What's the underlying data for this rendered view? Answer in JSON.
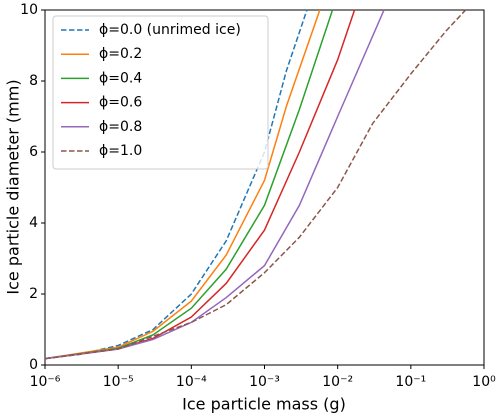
{
  "chart_data": {
    "type": "line",
    "xlabel": "Ice particle mass (g)",
    "ylabel": "Ice particle diameter (mm)",
    "xscale": "log",
    "xlim": [
      1e-06,
      1
    ],
    "ylim": [
      0,
      10
    ],
    "xticks": [
      {
        "value": 1e-06,
        "label": "10⁻⁶"
      },
      {
        "value": 1e-05,
        "label": "10⁻⁵"
      },
      {
        "value": 0.0001,
        "label": "10⁻⁴"
      },
      {
        "value": 0.001,
        "label": "10⁻³"
      },
      {
        "value": 0.01,
        "label": "10⁻²"
      },
      {
        "value": 0.1,
        "label": "10⁻¹"
      },
      {
        "value": 1,
        "label": "10⁰"
      }
    ],
    "yticks": [
      0,
      2,
      4,
      6,
      8,
      10
    ],
    "legend": "upper left",
    "series": [
      {
        "name": "ϕ=0.0 (unrimed ice)",
        "color": "#1f77b4",
        "linestyle": "dashed",
        "x": [
          1e-06,
          3e-06,
          1e-05,
          3e-05,
          0.0001,
          0.0003,
          0.001,
          0.002,
          0.0038
        ],
        "values": [
          0.18,
          0.3,
          0.55,
          1.0,
          2.0,
          3.5,
          6.0,
          8.3,
          10
        ]
      },
      {
        "name": "ϕ=0.2",
        "color": "#ff7f0e",
        "linestyle": "solid",
        "x": [
          1e-06,
          1e-05,
          3e-05,
          0.0001,
          0.0003,
          0.001,
          0.002,
          0.0057
        ],
        "values": [
          0.18,
          0.5,
          0.95,
          1.8,
          3.1,
          5.2,
          7.3,
          10
        ]
      },
      {
        "name": "ϕ=0.4",
        "color": "#2ca02c",
        "linestyle": "solid",
        "x": [
          1e-06,
          1e-05,
          3e-05,
          0.0001,
          0.0003,
          0.001,
          0.003,
          0.0085
        ],
        "values": [
          0.18,
          0.47,
          0.85,
          1.6,
          2.7,
          4.5,
          7.2,
          10
        ]
      },
      {
        "name": "ϕ=0.6",
        "color": "#d62728",
        "linestyle": "solid",
        "x": [
          1e-06,
          1e-05,
          3e-05,
          0.0001,
          0.0003,
          0.001,
          0.003,
          0.01,
          0.017
        ],
        "values": [
          0.18,
          0.45,
          0.75,
          1.35,
          2.3,
          3.8,
          6.0,
          8.6,
          10
        ]
      },
      {
        "name": "ϕ=0.8",
        "color": "#9467bd",
        "linestyle": "solid",
        "x": [
          1e-06,
          1e-05,
          3e-05,
          0.0001,
          0.0003,
          0.001,
          0.003,
          0.01,
          0.043
        ],
        "values": [
          0.18,
          0.45,
          0.72,
          1.2,
          1.9,
          2.8,
          4.5,
          7.0,
          10
        ]
      },
      {
        "name": "ϕ=1.0",
        "color": "#8c564b",
        "linestyle": "dashed",
        "x": [
          1e-06,
          1e-05,
          0.0001,
          0.0003,
          0.001,
          0.003,
          0.01,
          0.03,
          0.1,
          0.3,
          0.56
        ],
        "values": [
          0.18,
          0.45,
          1.2,
          1.7,
          2.6,
          3.6,
          5.0,
          6.8,
          8.2,
          9.4,
          10
        ]
      }
    ]
  }
}
